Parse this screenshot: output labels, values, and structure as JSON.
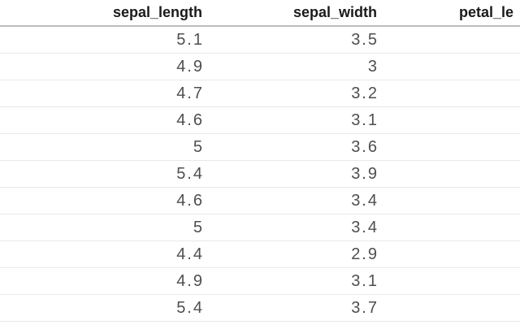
{
  "table": {
    "columns": [
      {
        "label": "sepal_length"
      },
      {
        "label": "sepal_width"
      },
      {
        "label": "petal_le"
      }
    ],
    "rows": [
      [
        "5.1",
        "3.5",
        ""
      ],
      [
        "4.9",
        "3",
        ""
      ],
      [
        "4.7",
        "3.2",
        ""
      ],
      [
        "4.6",
        "3.1",
        ""
      ],
      [
        "5",
        "3.6",
        ""
      ],
      [
        "5.4",
        "3.9",
        ""
      ],
      [
        "4.6",
        "3.4",
        ""
      ],
      [
        "5",
        "3.4",
        ""
      ],
      [
        "4.4",
        "2.9",
        ""
      ],
      [
        "4.9",
        "3.1",
        ""
      ],
      [
        "5.4",
        "3.7",
        ""
      ]
    ],
    "row_count_visible": 11,
    "colors": {
      "background": "#ffffff",
      "header_text": "#1b1b1b",
      "cell_text": "#4f4f4f",
      "header_rule": "#bcbcbc",
      "row_separator": "#e9e9e9"
    }
  }
}
